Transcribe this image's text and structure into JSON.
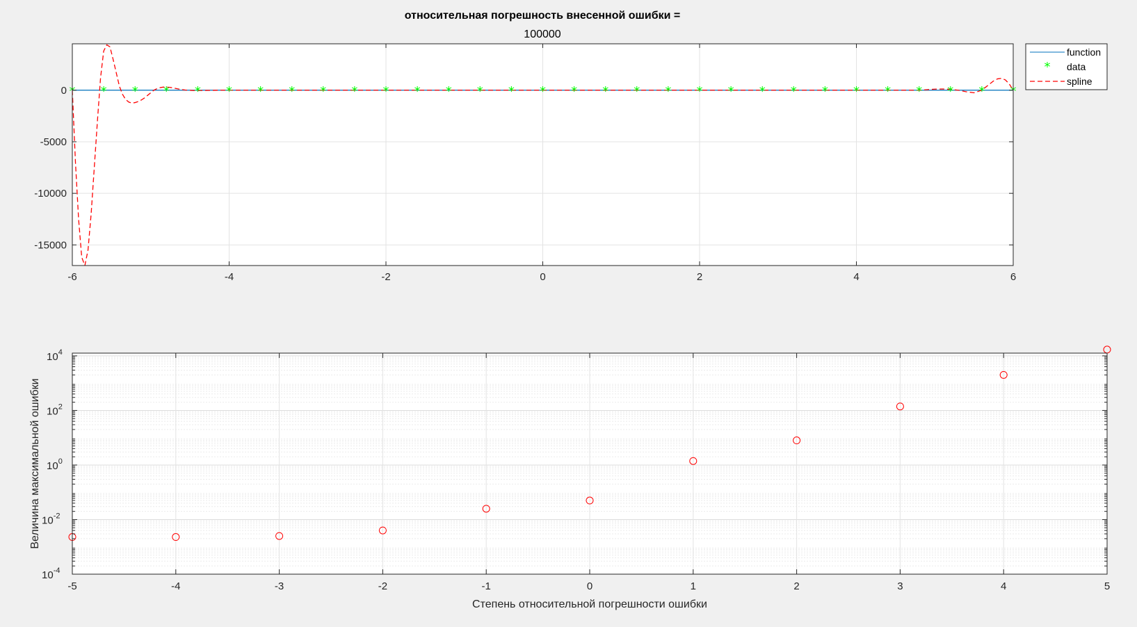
{
  "chart_data": [
    {
      "type": "line",
      "title": "относительная погрешность внесенной ошибки =",
      "subtitle": "100000",
      "xlabel": "",
      "ylabel": "",
      "xlim": [
        -6,
        6
      ],
      "ylim": [
        -17000,
        4500
      ],
      "xticks": [
        -6,
        -4,
        -2,
        0,
        2,
        4,
        6
      ],
      "yticks": [
        -15000,
        -10000,
        -5000,
        0
      ],
      "grid": true,
      "legend": "top-right-outside",
      "series": [
        {
          "name": "function",
          "style": "solid",
          "color": "#0072bd",
          "x": [
            -6,
            6
          ],
          "y": [
            0,
            0
          ]
        },
        {
          "name": "data",
          "style": "markers",
          "marker": "*",
          "color": "#00ff00",
          "x": [
            -6,
            -5.6,
            -5.2,
            -4.8,
            -4.4,
            -4,
            -3.6,
            -3.2,
            -2.8,
            -2.4,
            -2,
            -1.6,
            -1.2,
            -0.8,
            -0.4,
            0,
            0.4,
            0.8,
            1.2,
            1.6,
            2,
            2.4,
            2.8,
            3.2,
            3.6,
            4,
            4.4,
            4.8,
            5.2,
            5.6,
            6
          ],
          "y": [
            0,
            0,
            0,
            0,
            0,
            0,
            0,
            0,
            0,
            0,
            0,
            0,
            0,
            0,
            0,
            0,
            0,
            0,
            0,
            0,
            0,
            0,
            0,
            0,
            0,
            0,
            0,
            0,
            0,
            0,
            0
          ]
        },
        {
          "name": "spline",
          "style": "dashed",
          "color": "#ff0000",
          "x": [
            -6,
            -5.96,
            -5.92,
            -5.88,
            -5.84,
            -5.8,
            -5.76,
            -5.72,
            -5.68,
            -5.64,
            -5.6,
            -5.56,
            -5.52,
            -5.48,
            -5.44,
            -5.4,
            -5.36,
            -5.32,
            -5.28,
            -5.24,
            -5.2,
            -5.16,
            -5.12,
            -5.08,
            -5.04,
            -5.0,
            -4.96,
            -4.92,
            -4.88,
            -4.84,
            -4.8,
            -4.76,
            -4.72,
            -4.68,
            -4.64,
            -4.6,
            -4.56,
            -4.52,
            -4.48,
            -4.44,
            -4.4,
            -4.3,
            -4.2,
            -4.1,
            -4,
            -3.9,
            -3.8,
            4.8,
            4.9,
            5.0,
            5.1,
            5.2,
            5.3,
            5.4,
            5.5,
            5.6,
            5.65,
            5.7,
            5.75,
            5.8,
            5.85,
            5.9,
            5.95,
            6
          ],
          "y": [
            0,
            -7000,
            -12500,
            -16200,
            -17000,
            -15500,
            -12000,
            -7500,
            -3000,
            1200,
            3800,
            4400,
            4200,
            3000,
            1700,
            400,
            -400,
            -900,
            -1150,
            -1250,
            -1200,
            -1100,
            -950,
            -750,
            -500,
            -250,
            0,
            150,
            250,
            300,
            300,
            280,
            230,
            170,
            110,
            60,
            20,
            0,
            -20,
            -30,
            -30,
            -20,
            -10,
            0,
            0,
            0,
            0,
            0,
            50,
            100,
            120,
            80,
            0,
            -150,
            -250,
            0,
            300,
            600,
            900,
            1100,
            1150,
            1000,
            600,
            0
          ]
        }
      ]
    },
    {
      "type": "scatter",
      "title": "",
      "xlabel": "Степень относительной погрешности ошибки",
      "ylabel": "Величина максимальной ошибки",
      "xlim": [
        -5,
        5
      ],
      "ylim_log10": [
        -4,
        4.1
      ],
      "yscale": "log",
      "xticks": [
        -5,
        -4,
        -3,
        -2,
        -1,
        0,
        1,
        2,
        3,
        4,
        5
      ],
      "yticks": [
        "10^-4",
        "10^-2",
        "10^0",
        "10^2",
        "10^4"
      ],
      "grid": true,
      "series": [
        {
          "marker": "o",
          "color": "#ff0000",
          "x": [
            -5,
            -4,
            -3,
            -2,
            -1,
            0,
            1,
            2,
            3,
            4,
            5
          ],
          "y": [
            0.0023,
            0.0023,
            0.0025,
            0.004,
            0.025,
            0.05,
            1.4,
            8,
            140,
            2000,
            17000
          ]
        }
      ]
    }
  ]
}
